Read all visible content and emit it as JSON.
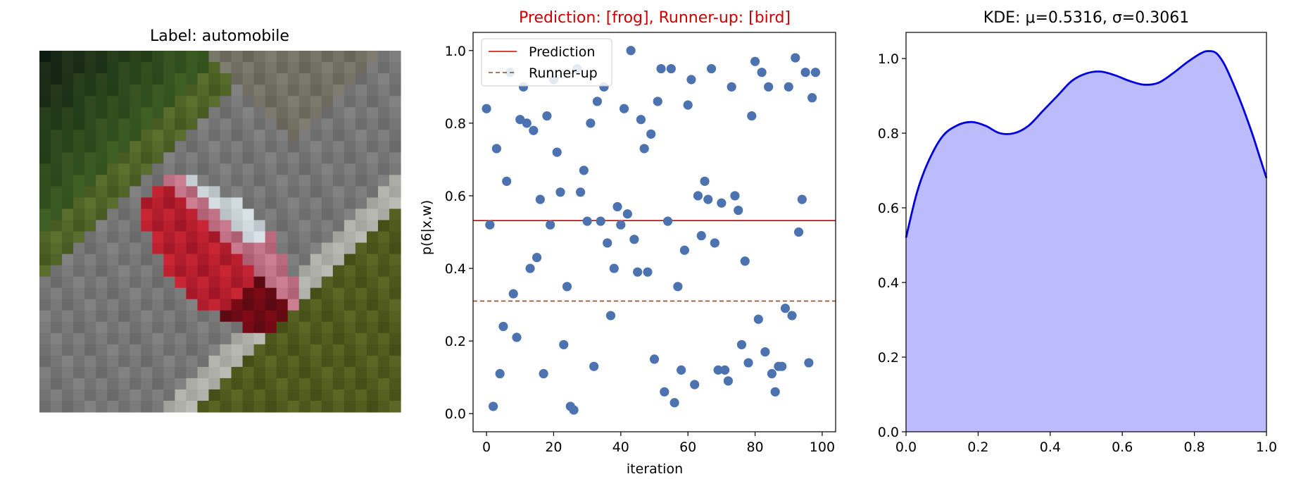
{
  "image_panel": {
    "title": "Label: automobile"
  },
  "chart_data": [
    {
      "type": "scatter",
      "title": "Prediction: [frog], Runner-up: [bird]",
      "title_color": "#cc0000",
      "xlabel": "iteration",
      "ylabel": "p(6|x,w)",
      "xlim": [
        -4,
        104
      ],
      "ylim": [
        -0.05,
        1.05
      ],
      "xticks": [
        0,
        20,
        40,
        60,
        80,
        100
      ],
      "yticks": [
        "0.0",
        "0.2",
        "0.4",
        "0.6",
        "0.8",
        "1.0"
      ],
      "grid": false,
      "legend_position": "top-left",
      "point_color": "#4c72b0",
      "lines": [
        {
          "name": "Prediction",
          "y": 0.5316,
          "style": "solid",
          "color": "#d00000"
        },
        {
          "name": "Runner-up",
          "y": 0.31,
          "style": "dashed",
          "color": "#8b4a2b"
        }
      ],
      "x": [
        0,
        1,
        2,
        3,
        4,
        5,
        6,
        7,
        8,
        9,
        10,
        11,
        12,
        13,
        14,
        15,
        16,
        17,
        18,
        19,
        20,
        21,
        22,
        23,
        24,
        25,
        26,
        27,
        28,
        29,
        30,
        31,
        32,
        33,
        34,
        35,
        36,
        37,
        38,
        39,
        40,
        41,
        42,
        43,
        44,
        45,
        46,
        47,
        48,
        49,
        50,
        51,
        52,
        53,
        54,
        55,
        56,
        57,
        58,
        59,
        60,
        61,
        62,
        63,
        64,
        65,
        66,
        67,
        68,
        69,
        70,
        71,
        72,
        73,
        74,
        75,
        76,
        77,
        78,
        79,
        80,
        81,
        82,
        83,
        84,
        85,
        86,
        87,
        88,
        89,
        90,
        91,
        92,
        93,
        94,
        95,
        96,
        97,
        98
      ],
      "y": [
        0.84,
        0.52,
        0.02,
        0.73,
        0.11,
        0.24,
        0.64,
        0.94,
        0.33,
        0.21,
        0.81,
        0.9,
        0.8,
        0.4,
        0.78,
        0.43,
        0.59,
        0.11,
        0.82,
        0.52,
        0.92,
        0.72,
        0.61,
        0.19,
        0.35,
        0.02,
        0.01,
        0.95,
        0.61,
        0.67,
        0.53,
        0.8,
        0.13,
        0.86,
        0.53,
        0.9,
        0.47,
        0.27,
        0.4,
        0.57,
        0.52,
        0.84,
        0.55,
        1.0,
        0.48,
        0.39,
        0.81,
        0.73,
        0.39,
        0.77,
        0.15,
        0.86,
        0.95,
        0.06,
        0.53,
        0.95,
        0.03,
        0.35,
        0.12,
        0.45,
        0.85,
        0.92,
        0.08,
        0.6,
        0.49,
        0.64,
        0.59,
        0.95,
        0.47,
        0.12,
        0.58,
        0.12,
        0.09,
        0.9,
        0.6,
        0.56,
        0.19,
        0.42,
        0.14,
        0.82,
        0.97,
        0.26,
        0.94,
        0.17,
        0.9,
        0.11,
        0.06,
        0.13,
        0.13,
        0.29,
        0.9,
        0.27,
        0.98,
        0.5,
        0.59,
        0.94,
        0.14,
        0.87,
        0.94
      ]
    },
    {
      "type": "area",
      "title": "KDE: μ=0.5316, σ=0.3061",
      "xlim": [
        0.0,
        1.0
      ],
      "ylim": [
        0.0,
        1.07
      ],
      "xticks": [
        "0.0",
        "0.2",
        "0.4",
        "0.6",
        "0.8",
        "1.0"
      ],
      "yticks": [
        "0.0",
        "0.2",
        "0.4",
        "0.6",
        "0.8",
        "1.0"
      ],
      "grid": false,
      "line_color": "#0000dd",
      "fill_color": "#bcbcfc",
      "x": [
        0.0,
        0.03,
        0.06,
        0.1,
        0.14,
        0.18,
        0.22,
        0.26,
        0.3,
        0.34,
        0.38,
        0.42,
        0.46,
        0.5,
        0.54,
        0.58,
        0.62,
        0.66,
        0.7,
        0.74,
        0.78,
        0.82,
        0.84,
        0.86,
        0.88,
        0.9,
        0.93,
        0.96,
        0.98,
        1.0
      ],
      "y": [
        0.52,
        0.64,
        0.72,
        0.79,
        0.82,
        0.83,
        0.82,
        0.8,
        0.8,
        0.82,
        0.86,
        0.9,
        0.94,
        0.96,
        0.965,
        0.955,
        0.94,
        0.93,
        0.935,
        0.96,
        0.99,
        1.015,
        1.02,
        1.015,
        0.99,
        0.95,
        0.88,
        0.8,
        0.74,
        0.68
      ]
    }
  ]
}
